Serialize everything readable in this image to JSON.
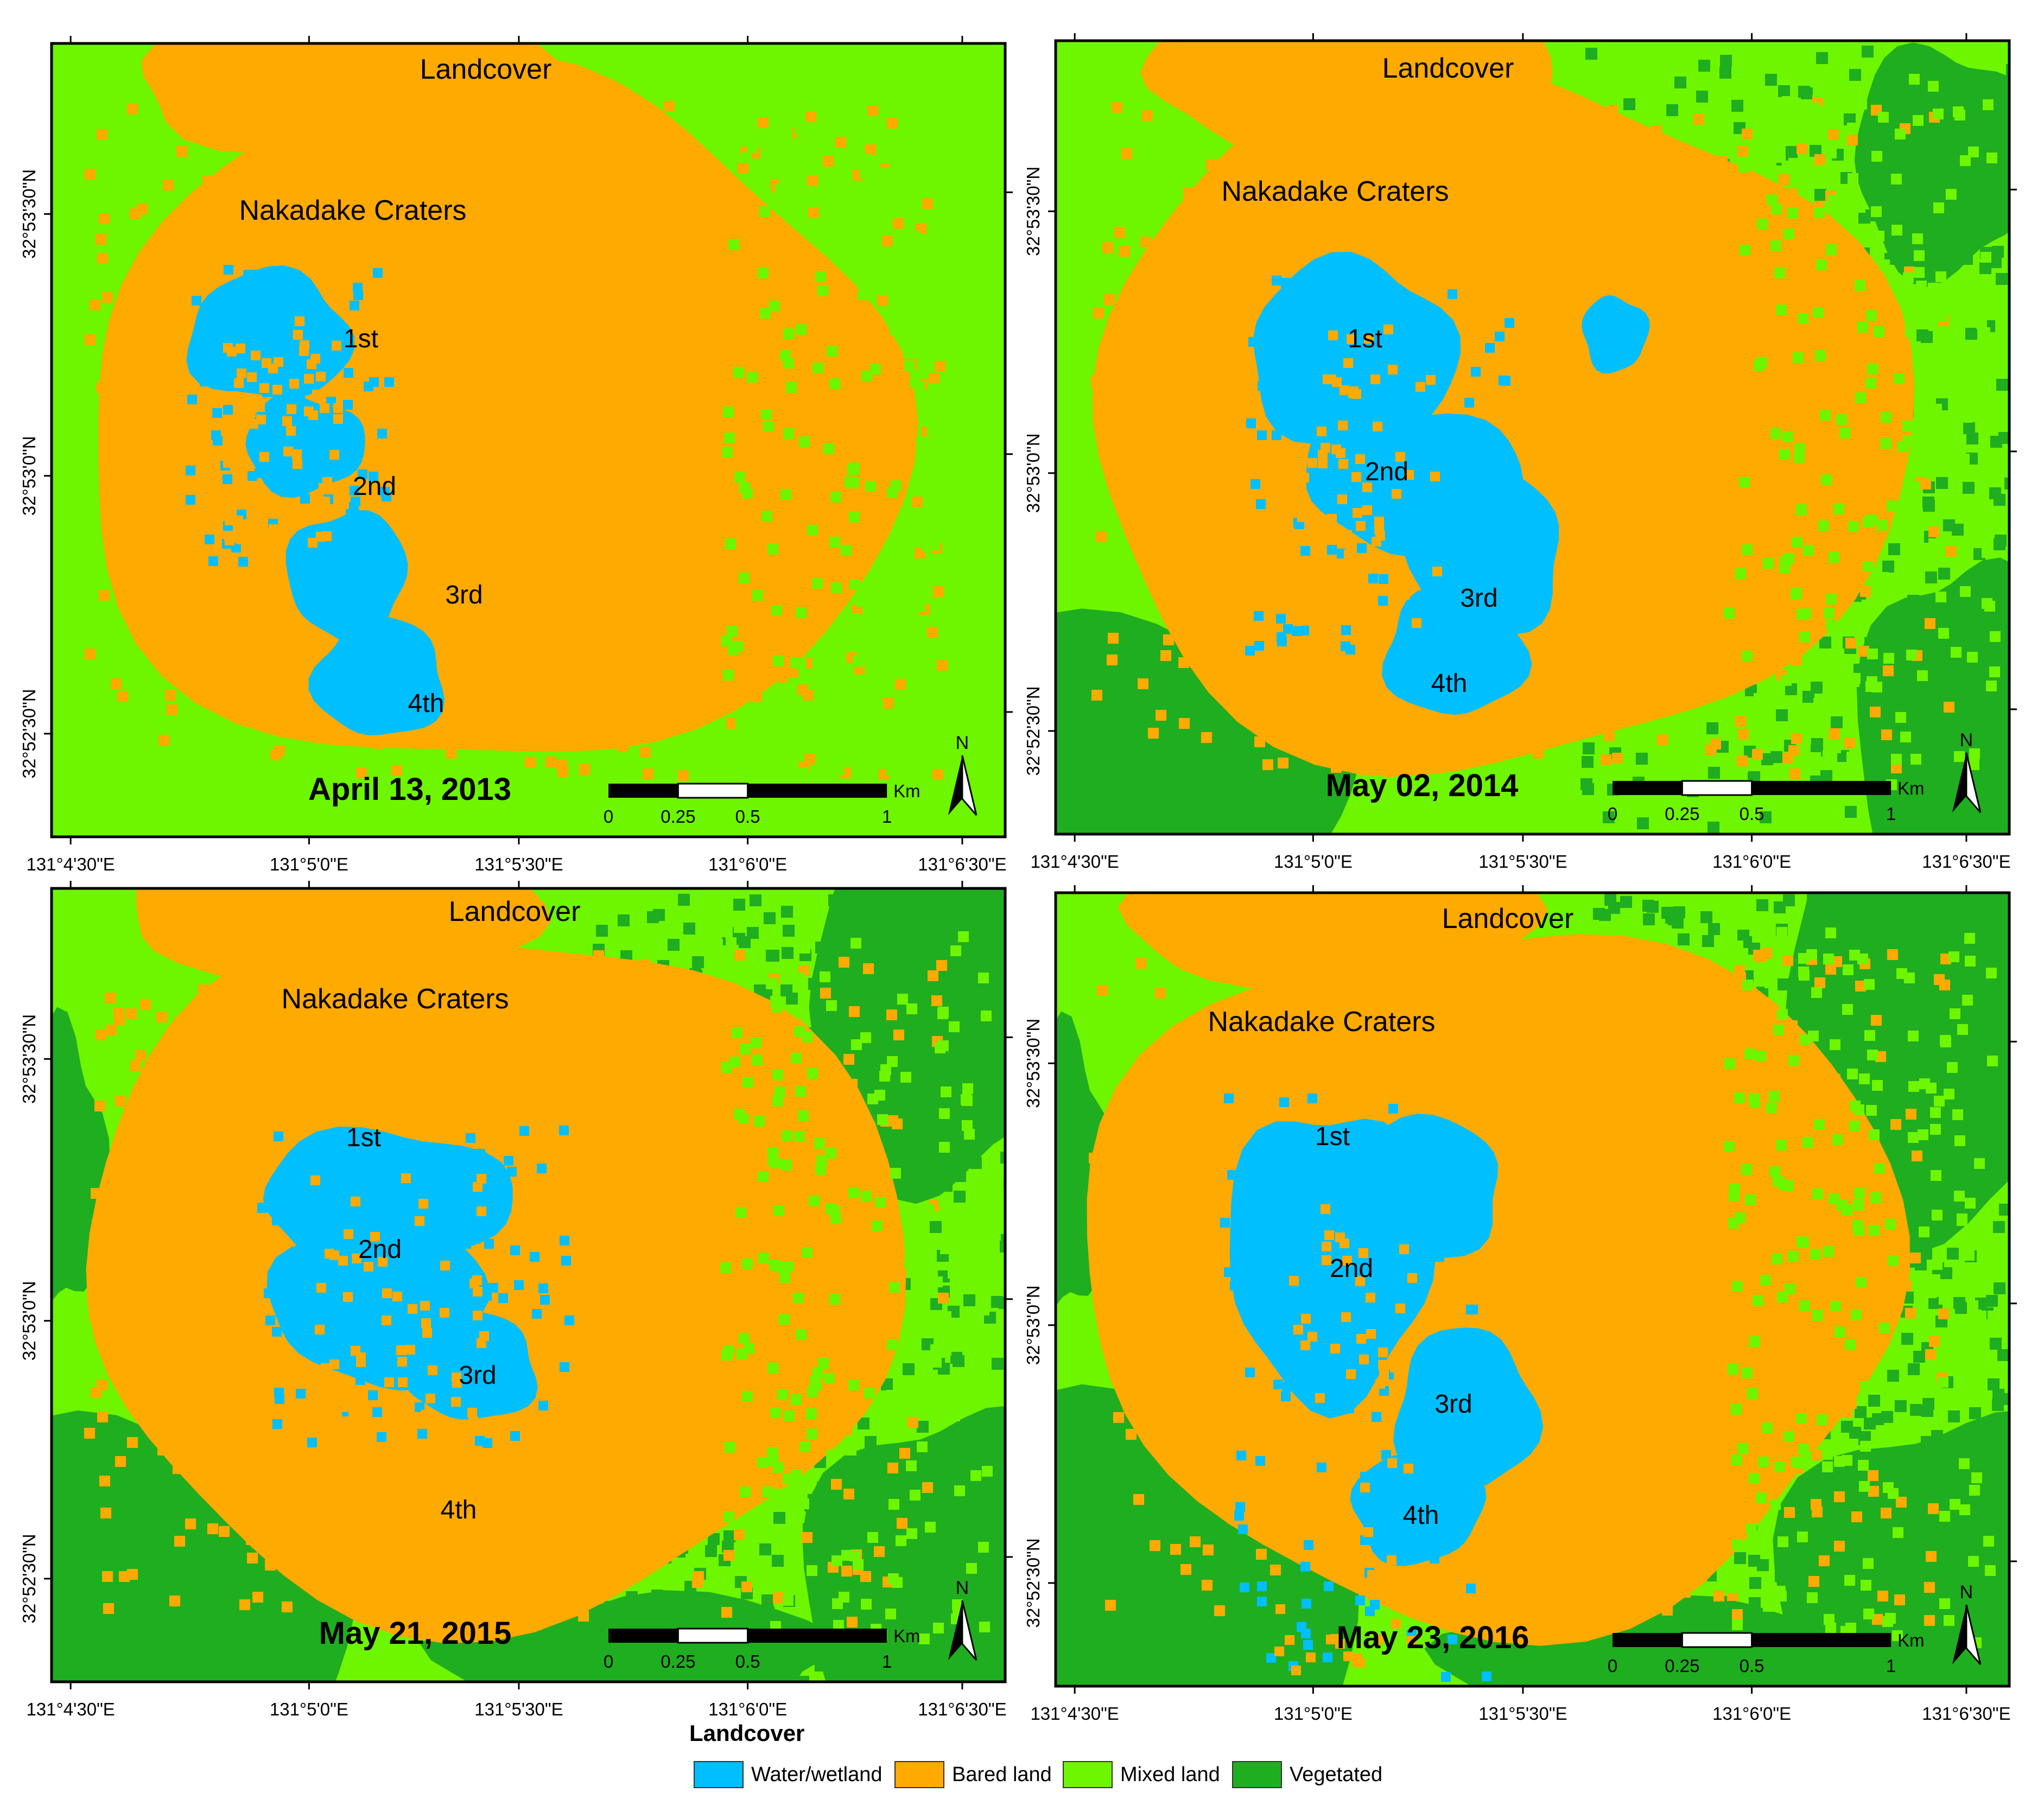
{
  "colors": {
    "water": "#00bfff",
    "bare": "#ffaa00",
    "mixed": "#6ef500",
    "vegetated": "#1fae1f",
    "frame": "#000000"
  },
  "panels": [
    {
      "title": "Landcover",
      "subtitle": "Nakadake Craters",
      "date": "April 13, 2013",
      "craters": [
        "1st",
        "2nd",
        "3rd",
        "4th"
      ],
      "lat_ticks": [
        "32°53'30\"N",
        "32°53'0\"N",
        "32°52'30\"N"
      ],
      "lon_ticks": [
        "131°4'30\"E",
        "131°5'0\"E",
        "131°5'30\"E",
        "131°6'0\"E",
        "131°6'30\"E"
      ],
      "scalebar": {
        "labels": [
          "0",
          "0.25",
          "0.5",
          "1"
        ],
        "unit": "Km"
      },
      "north": "N"
    },
    {
      "title": "Landcover",
      "subtitle": "Nakadake Craters",
      "date": "May 02, 2014",
      "craters": [
        "1st",
        "2nd",
        "3rd",
        "4th"
      ],
      "lat_ticks": [
        "32°53'30\"N",
        "32°53'0\"N",
        "32°52'30\"N"
      ],
      "lon_ticks": [
        "131°4'30\"E",
        "131°5'0\"E",
        "131°5'30\"E",
        "131°6'0\"E",
        "131°6'30\"E"
      ],
      "scalebar": {
        "labels": [
          "0",
          "0.25",
          "0.5",
          "1"
        ],
        "unit": "Km"
      },
      "north": "N"
    },
    {
      "title": "Landcover",
      "subtitle": "Nakadake Craters",
      "date": "May 21, 2015",
      "craters": [
        "1st",
        "2nd",
        "3rd",
        "4th"
      ],
      "lat_ticks": [
        "32°53'30\"N",
        "32°53'0\"N",
        "32°52'30\"N"
      ],
      "lon_ticks": [
        "131°4'30\"E",
        "131°5'0\"E",
        "131°5'30\"E",
        "131°6'0\"E",
        "131°6'30\"E"
      ],
      "scalebar": {
        "labels": [
          "0",
          "0.25",
          "0.5",
          "1"
        ],
        "unit": "Km"
      },
      "north": "N"
    },
    {
      "title": "Landcover",
      "subtitle": "Nakadake Craters",
      "date": "May 23, 2016",
      "craters": [
        "1st",
        "2nd",
        "3rd",
        "4th"
      ],
      "lat_ticks": [
        "32°53'30\"N",
        "32°53'0\"N",
        "32°52'30\"N"
      ],
      "lon_ticks": [
        "131°4'30\"E",
        "131°5'0\"E",
        "131°5'30\"E",
        "131°6'0\"E",
        "131°6'30\"E"
      ],
      "scalebar": {
        "labels": [
          "0",
          "0.25",
          "0.5",
          "1"
        ],
        "unit": "Km"
      },
      "north": "N"
    }
  ],
  "legend": {
    "title": "Landcover",
    "items": [
      {
        "label": "Water/wetland",
        "color": "#00bfff"
      },
      {
        "label": "Bared land",
        "color": "#ffaa00"
      },
      {
        "label": "Mixed land",
        "color": "#6ef500"
      },
      {
        "label": "Vegetated",
        "color": "#1fae1f"
      }
    ]
  }
}
